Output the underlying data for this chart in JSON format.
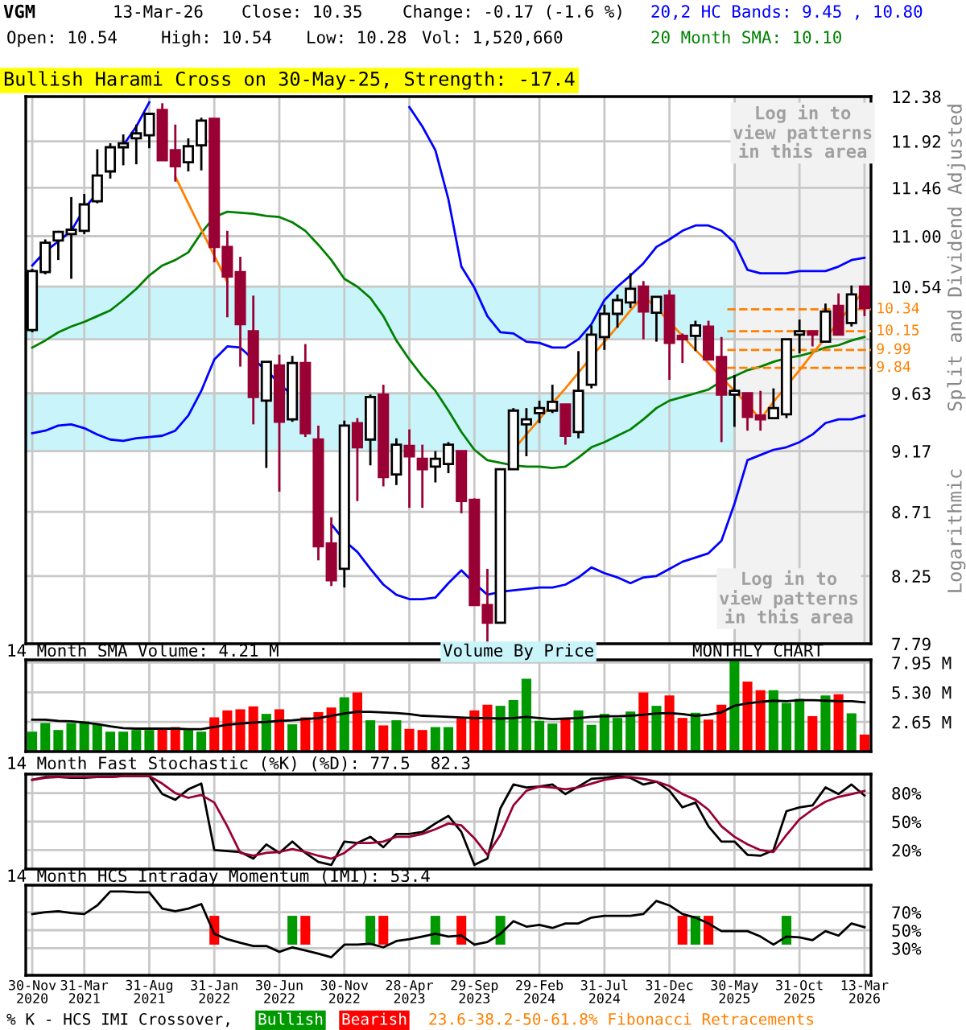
{
  "chart_data": [
    {
      "type": "candlestick",
      "title": "Bullish Harami Cross on 30-May-25, Strength: -17.4",
      "ylabel": "Split and Dividend Adjusted",
      "annotations": [
        "VGM",
        "13-Mar-26",
        "Close: 10.35",
        "Change: -0.17 (-1.6 %)",
        "Open: 10.54",
        "High: 10.54",
        "Low: 10.28",
        "Vol: 1,520,660",
        "MONTHLY CHART",
        "Log in to\nview patterns\nin this area",
        "Logarithmic",
        "23.6-38.2-50-61.8% Fibonacci Retracements",
        "Volume By Price"
      ],
      "categories": [
        "30-Nov\n2020",
        null,
        null,
        null,
        "31-Mar\n2021",
        null,
        null,
        null,
        null,
        "31-Aug\n2021",
        null,
        null,
        null,
        null,
        "31-Jan\n2022",
        null,
        null,
        null,
        null,
        "30-Jun\n2022",
        null,
        null,
        null,
        null,
        "30-Nov\n2022",
        null,
        null,
        null,
        null,
        "28-Apr\n2023",
        null,
        null,
        null,
        null,
        "29-Sep\n2023",
        null,
        null,
        null,
        null,
        "29-Feb\n2024",
        null,
        null,
        null,
        null,
        "31-Jul\n2024",
        null,
        null,
        null,
        null,
        "31-Dec\n2024",
        null,
        null,
        null,
        null,
        "30-May\n2025",
        null,
        null,
        null,
        null,
        "31-Oct\n2025",
        null,
        null,
        null,
        null,
        "13-Mar\n2026"
      ],
      "ohlc": [
        [
          10.16,
          10.7,
          10.14,
          10.68
        ],
        [
          10.67,
          10.97,
          10.65,
          10.94
        ],
        [
          10.96,
          11.05,
          10.78,
          11.04
        ],
        [
          11.02,
          11.37,
          10.61,
          11.06
        ],
        [
          11.05,
          11.4,
          11.02,
          11.3
        ],
        [
          11.33,
          11.84,
          11.31,
          11.58
        ],
        [
          11.62,
          11.9,
          11.55,
          11.86
        ],
        [
          11.86,
          11.99,
          11.68,
          11.9
        ],
        [
          11.95,
          12.09,
          11.69,
          12.0
        ],
        [
          11.98,
          12.21,
          11.85,
          12.2
        ],
        [
          12.24,
          12.31,
          11.73,
          11.73
        ],
        [
          11.83,
          12.09,
          11.52,
          11.67
        ],
        [
          11.71,
          11.95,
          11.62,
          11.87
        ],
        [
          11.88,
          12.16,
          11.63,
          12.13
        ],
        [
          12.15,
          12.15,
          10.76,
          10.9
        ],
        [
          10.9,
          11.05,
          10.27,
          10.63
        ],
        [
          10.67,
          10.81,
          9.85,
          10.21
        ],
        [
          10.15,
          10.46,
          9.38,
          9.6
        ],
        [
          9.57,
          9.89,
          9.04,
          9.89
        ],
        [
          9.86,
          9.95,
          8.86,
          9.4
        ],
        [
          9.42,
          9.94,
          9.4,
          9.88
        ],
        [
          9.88,
          10.04,
          9.28,
          9.31
        ],
        [
          9.26,
          9.37,
          8.36,
          8.46
        ],
        [
          8.48,
          8.67,
          8.18,
          8.22
        ],
        [
          8.3,
          9.41,
          8.17,
          9.37
        ],
        [
          9.39,
          9.43,
          8.79,
          9.2
        ],
        [
          9.26,
          9.62,
          9.06,
          9.6
        ],
        [
          9.62,
          9.7,
          8.9,
          8.97
        ],
        [
          8.99,
          9.27,
          8.91,
          9.22
        ],
        [
          9.21,
          9.34,
          8.74,
          9.13
        ],
        [
          9.11,
          9.22,
          8.74,
          9.03
        ],
        [
          9.05,
          9.17,
          8.93,
          9.11
        ],
        [
          9.07,
          9.24,
          9.0,
          9.22
        ],
        [
          9.17,
          9.17,
          8.7,
          8.79
        ],
        [
          8.8,
          8.81,
          8.05,
          8.05
        ],
        [
          8.05,
          8.3,
          7.79,
          7.93
        ],
        [
          7.93,
          9.03,
          7.93,
          9.03
        ],
        [
          9.03,
          9.51,
          9.03,
          9.49
        ],
        [
          9.38,
          9.51,
          9.13,
          9.42
        ],
        [
          9.47,
          9.57,
          9.39,
          9.51
        ],
        [
          9.49,
          9.7,
          9.47,
          9.56
        ],
        [
          9.54,
          9.54,
          9.22,
          9.29
        ],
        [
          9.32,
          9.98,
          9.27,
          9.65
        ],
        [
          9.7,
          10.2,
          9.67,
          10.12
        ],
        [
          10.1,
          10.38,
          9.99,
          10.3
        ],
        [
          10.3,
          10.47,
          10.18,
          10.42
        ],
        [
          10.4,
          10.66,
          10.35,
          10.52
        ],
        [
          10.54,
          10.59,
          10.08,
          10.32
        ],
        [
          10.31,
          10.45,
          10.06,
          10.45
        ],
        [
          10.46,
          10.51,
          9.74,
          10.05
        ],
        [
          10.11,
          10.13,
          9.88,
          10.08
        ],
        [
          10.11,
          10.24,
          9.98,
          10.2
        ],
        [
          10.19,
          10.24,
          9.91,
          9.91
        ],
        [
          9.93,
          10.1,
          9.24,
          9.62
        ],
        [
          9.62,
          9.78,
          9.36,
          9.65
        ],
        [
          9.63,
          9.63,
          9.33,
          9.44
        ],
        [
          9.45,
          9.65,
          9.33,
          9.42
        ],
        [
          9.43,
          9.67,
          9.43,
          9.51
        ],
        [
          9.46,
          10.08,
          9.43,
          10.08
        ],
        [
          10.12,
          10.25,
          9.96,
          10.15
        ],
        [
          10.15,
          10.15,
          10.02,
          10.12
        ],
        [
          10.06,
          10.39,
          10.06,
          10.32
        ],
        [
          10.37,
          10.48,
          10.12,
          10.12
        ],
        [
          10.22,
          10.55,
          10.19,
          10.47
        ],
        [
          10.54,
          10.54,
          10.28,
          10.35
        ]
      ],
      "series": [
        {
          "name": "20,2 HC Bands: 9.45 , 10.80",
          "type": "line",
          "color": "#0000ff",
          "values": [
            10.73,
            10.86,
            10.95,
            11.05,
            11.26,
            11.41,
            null,
            11.88,
            12.07,
            12.32,
            null,
            null,
            null,
            null,
            null,
            null,
            null,
            null,
            null,
            null,
            null,
            null,
            null,
            null,
            null,
            null,
            null,
            null,
            null,
            12.27,
            12.07,
            11.83,
            11.35,
            10.72,
            10.53,
            10.28,
            10.14,
            10.13,
            10.06,
            10.05,
            10.01,
            10.01,
            10.08,
            10.21,
            10.42,
            10.54,
            10.64,
            10.75,
            10.9,
            10.97,
            11.05,
            11.1,
            11.1,
            11.05,
            10.94,
            10.69,
            10.66,
            10.66,
            10.66,
            10.68,
            10.68,
            10.68,
            10.72,
            10.78,
            10.8
          ]
        },
        {
          "type": "line",
          "color": "#0000ff",
          "values": [
            9.31,
            9.33,
            9.37,
            9.38,
            9.35,
            9.3,
            9.26,
            9.25,
            9.27,
            9.28,
            9.29,
            9.33,
            9.45,
            9.65,
            9.91,
            10.02,
            10.01,
            9.91,
            9.82,
            9.71,
            9.61,
            null,
            null,
            8.62,
            8.5,
            8.42,
            8.3,
            8.19,
            8.12,
            8.09,
            8.09,
            8.1,
            8.2,
            8.29,
            8.2,
            8.12,
            8.14,
            8.15,
            8.16,
            8.17,
            8.17,
            8.19,
            8.24,
            8.31,
            8.27,
            8.24,
            8.2,
            8.24,
            8.25,
            8.3,
            8.35,
            8.38,
            8.41,
            8.5,
            8.77,
            9.1,
            9.14,
            9.18,
            9.2,
            9.24,
            9.3,
            9.39,
            9.42,
            9.42,
            9.45
          ]
        },
        {
          "name": "20 Month SMA: 10.10",
          "type": "line",
          "color": "#008000",
          "values": [
            10.01,
            10.07,
            10.14,
            10.19,
            10.23,
            10.28,
            10.33,
            10.42,
            10.52,
            10.64,
            10.73,
            10.78,
            10.85,
            11.03,
            11.18,
            11.23,
            11.22,
            11.21,
            11.19,
            11.18,
            11.13,
            11.05,
            10.92,
            10.78,
            10.61,
            10.54,
            10.44,
            10.28,
            10.07,
            9.91,
            9.77,
            9.65,
            9.49,
            9.32,
            9.18,
            9.1,
            9.08,
            9.06,
            9.05,
            9.05,
            9.04,
            9.05,
            9.12,
            9.2,
            9.24,
            9.29,
            9.34,
            9.42,
            9.51,
            9.57,
            9.6,
            9.63,
            9.66,
            9.73,
            9.77,
            9.82,
            9.85,
            9.89,
            9.92,
            9.94,
            9.97,
            10.01,
            10.03,
            10.07,
            10.1
          ]
        },
        {
          "type": "line",
          "color": "#ff8000",
          "values": [
            null,
            null,
            null,
            null,
            null,
            null,
            null,
            null,
            null,
            null,
            null,
            11.57,
            11.31,
            11.06,
            10.82,
            10.58,
            null,
            null,
            null,
            null,
            null,
            null,
            null,
            null,
            null,
            null,
            null,
            null,
            null,
            null,
            null,
            null,
            null,
            null,
            null,
            null,
            null,
            9.18,
            9.3,
            9.42,
            9.55,
            9.67,
            9.8,
            9.93,
            10.06,
            10.19,
            10.33,
            10.46,
            10.35,
            10.23,
            10.11,
            9.99,
            9.88,
            9.76,
            9.65,
            9.54,
            9.42,
            9.56,
            9.69,
            9.82,
            9.96,
            10.09,
            10.23,
            10.37,
            10.51
          ]
        }
      ],
      "log": true,
      "ylim": [
        7.79,
        12.38
      ],
      "yticks": [
        7.79,
        8.25,
        8.71,
        9.17,
        9.63,
        {
          "value": 10.08,
          "label": null
        },
        10.54,
        {
          "value": 11,
          "label": "11.00"
        },
        11.46,
        11.92,
        12.38
      ],
      "grid": true,
      "tick_labels": "y",
      "bands": [
        {
          "axis": "x",
          "from": "30-May\n2025",
          "to": "13-Mar\n2026",
          "label": "Log in to\nview patterns\nin this area",
          "color": "#f2f2f2"
        },
        {
          "axis": "y",
          "from": 10.08,
          "to": 10.54,
          "color": "#c8f4fa"
        },
        {
          "axis": "y",
          "from": 9.17,
          "to": 9.63,
          "color": "#c8f4fa"
        }
      ],
      "ref_lines": [
        {
          "axis": "y",
          "value": 10.34,
          "label": "10.34",
          "color": "#ff8000",
          "line_style": "dashed"
        },
        {
          "axis": "y",
          "value": 10.15,
          "label": "10.15",
          "color": "#ff8000",
          "line_style": "dashed"
        },
        {
          "axis": "y",
          "value": 9.99,
          "label": "9.99",
          "color": "#ff8000",
          "line_style": "dashed"
        },
        {
          "axis": "y",
          "value": 9.84,
          "label": "9.84",
          "color": "#ff8000",
          "line_style": "dashed"
        }
      ]
    },
    {
      "type": "bar",
      "title": "14 Month SMA Volume: 4.21 M",
      "categories": [
        "30-Nov\n2020",
        null,
        null,
        null,
        "31-Mar\n2021",
        null,
        null,
        null,
        null,
        "31-Aug\n2021",
        null,
        null,
        null,
        null,
        "31-Jan\n2022",
        null,
        null,
        null,
        null,
        "30-Jun\n2022",
        null,
        null,
        null,
        null,
        "30-Nov\n2022",
        null,
        null,
        null,
        null,
        "28-Apr\n2023",
        null,
        null,
        null,
        null,
        "29-Sep\n2023",
        null,
        null,
        null,
        null,
        "29-Feb\n2024",
        null,
        null,
        null,
        null,
        "31-Jul\n2024",
        null,
        null,
        null,
        null,
        "31-Dec\n2024",
        null,
        null,
        null,
        null,
        "30-May\n2025",
        null,
        null,
        null,
        null,
        "31-Oct\n2025",
        null,
        null,
        null,
        null,
        "13-Mar\n2026"
      ],
      "series": [
        {
          "type": "bar",
          "values": [
            1.78,
            2.55,
            1.93,
            2.55,
            2.7,
            2.44,
            1.78,
            1.78,
            1.93,
            1.93,
            2.14,
            2.19,
            1.93,
            1.78,
            3.06,
            3.68,
            3.78,
            4.04,
            3.37,
            3.78,
            2.44,
            3.06,
            3.53,
            3.94,
            4.86,
            5.28,
            2.8,
            2.34,
            2.8,
            2.03,
            1.93,
            2.19,
            2.19,
            2.96,
            3.68,
            4.19,
            4.09,
            4.61,
            6.51,
            2.75,
            2.5,
            3.01,
            3.68,
            2.39,
            3.37,
            3.01,
            3.58,
            5.28,
            4.09,
            5.02,
            3.01,
            3.47,
            2.86,
            4.19,
            8.1,
            6.25,
            5.48,
            5.48,
            4.35,
            4.71,
            3.17,
            5.02,
            5.12,
            3.42,
            1.52
          ],
          "colors": [
            "#009900",
            "#009900",
            "#009900",
            "#009900",
            "#009900",
            "#009900",
            "#009900",
            "#009900",
            "#009900",
            "#009900",
            "#ff0000",
            "#ff0000",
            "#009900",
            "#009900",
            "#ff0000",
            "#ff0000",
            "#ff0000",
            "#ff0000",
            "#009900",
            "#ff0000",
            "#009900",
            "#ff0000",
            "#ff0000",
            "#ff0000",
            "#009900",
            "#ff0000",
            "#009900",
            "#ff0000",
            "#009900",
            "#ff0000",
            "#ff0000",
            "#009900",
            "#009900",
            "#ff0000",
            "#ff0000",
            "#ff0000",
            "#009900",
            "#009900",
            "#009900",
            "#009900",
            "#009900",
            "#ff0000",
            "#009900",
            "#009900",
            "#009900",
            "#009900",
            "#009900",
            "#ff0000",
            "#009900",
            "#ff0000",
            "#ff0000",
            "#009900",
            "#ff0000",
            "#ff0000",
            "#009900",
            "#ff0000",
            "#ff0000",
            "#009900",
            "#009900",
            "#009900",
            "#ff0000",
            "#009900",
            "#ff0000",
            "#009900",
            "#ff0000"
          ]
        },
        {
          "type": "line",
          "color": "#000000",
          "values": [
            2.85,
            2.85,
            2.75,
            2.7,
            2.6,
            2.45,
            2.25,
            2.1,
            2.05,
            2.05,
            2.05,
            2.05,
            2.0,
            2.0,
            2.2,
            2.4,
            2.5,
            2.6,
            2.65,
            2.75,
            2.8,
            2.9,
            3.0,
            3.2,
            3.4,
            3.55,
            3.55,
            3.5,
            3.45,
            3.35,
            3.2,
            3.15,
            3.1,
            3.05,
            3.0,
            3.0,
            2.95,
            3.0,
            3.1,
            3.0,
            2.9,
            2.95,
            3.0,
            3.1,
            3.15,
            3.15,
            3.2,
            3.3,
            3.4,
            3.45,
            3.35,
            3.2,
            3.3,
            3.5,
            4.1,
            4.3,
            4.45,
            4.55,
            4.5,
            4.6,
            4.6,
            4.55,
            4.5,
            4.5,
            4.4
          ]
        }
      ],
      "ylim": [
        0,
        8.2
      ],
      "yticks": [
        {
          "value": 2.65,
          "label": "2.65 M"
        },
        {
          "value": 5.3,
          "label": "5.30 M"
        },
        {
          "value": 7.95,
          "label": "7.95 M"
        }
      ],
      "grid": true,
      "tick_labels": "y"
    },
    {
      "type": "line",
      "title": "14 Month Fast Stochastic (%K) (%D): 77.5  82.3",
      "categories": [
        "30-Nov\n2020",
        null,
        null,
        null,
        "31-Mar\n2021",
        null,
        null,
        null,
        null,
        "31-Aug\n2021",
        null,
        null,
        null,
        null,
        "31-Jan\n2022",
        null,
        null,
        null,
        null,
        "30-Jun\n2022",
        null,
        null,
        null,
        null,
        "30-Nov\n2022",
        null,
        null,
        null,
        null,
        "28-Apr\n2023",
        null,
        null,
        null,
        null,
        "29-Sep\n2023",
        null,
        null,
        null,
        null,
        "29-Feb\n2024",
        null,
        null,
        null,
        null,
        "31-Jul\n2024",
        null,
        null,
        null,
        null,
        "31-Dec\n2024",
        null,
        null,
        null,
        null,
        "30-May\n2025",
        null,
        null,
        null,
        null,
        "31-Oct\n2025",
        null,
        null,
        null,
        null,
        "13-Mar\n2026"
      ],
      "series": [
        {
          "color": "#000000",
          "values": [
            94,
            97,
            97,
            96,
            96,
            97,
            97,
            98,
            98,
            98,
            79,
            73,
            84,
            90,
            20,
            19,
            18,
            11,
            26,
            17,
            29,
            17,
            7.5,
            4.4,
            29,
            27.5,
            34,
            23,
            37,
            37,
            39,
            48,
            56,
            39,
            4.4,
            11,
            64,
            89,
            86,
            87,
            89,
            79,
            87,
            95,
            96,
            98,
            96,
            89,
            92,
            82.5,
            65,
            70,
            45,
            29,
            29,
            15,
            14,
            20,
            61,
            65,
            67,
            86,
            79,
            89,
            77.5
          ]
        },
        {
          "color": "#990033",
          "values": [
            94,
            96,
            97,
            97,
            97,
            97,
            97,
            98,
            98,
            98,
            90,
            80,
            75,
            78,
            70,
            45,
            17,
            14,
            17,
            18,
            21,
            18,
            14,
            11,
            17,
            27.5,
            27.5,
            29,
            34,
            34,
            37,
            42,
            48,
            46,
            32.5,
            15,
            36,
            67,
            82.5,
            87,
            86,
            84,
            86,
            90,
            94,
            96,
            97,
            95,
            92,
            87.5,
            79,
            73,
            62.5,
            45,
            34,
            26,
            20,
            18,
            36,
            52.5,
            62.5,
            71,
            76,
            79,
            82.3
          ]
        }
      ],
      "ylim": [
        0,
        100
      ],
      "yticks": [
        {
          "value": 20,
          "label": "20%"
        },
        {
          "value": 50,
          "label": "50%"
        },
        {
          "value": 80,
          "label": "80%"
        }
      ],
      "grid": true,
      "tick_labels": "y"
    },
    {
      "type": "line",
      "title": "14 Month HCS Intraday Momentum (IMI): 53.4",
      "legend_title": "% K - HCS IMI Crossover,",
      "legend": "bottom",
      "categories": [
        "30-Nov\n2020",
        null,
        null,
        null,
        "31-Mar\n2021",
        null,
        null,
        null,
        null,
        "31-Aug\n2021",
        null,
        null,
        null,
        null,
        "31-Jan\n2022",
        null,
        null,
        null,
        null,
        "30-Jun\n2022",
        null,
        null,
        null,
        null,
        "30-Nov\n2022",
        null,
        null,
        null,
        null,
        "28-Apr\n2023",
        null,
        null,
        null,
        null,
        "29-Sep\n2023",
        null,
        null,
        null,
        null,
        "29-Feb\n2024",
        null,
        null,
        null,
        null,
        "31-Jul\n2024",
        null,
        null,
        null,
        null,
        "31-Dec\n2024",
        null,
        null,
        null,
        null,
        "30-May\n2025",
        null,
        null,
        null,
        null,
        "31-Oct\n2025",
        null,
        null,
        null,
        null,
        "13-Mar\n2026"
      ],
      "series": [
        {
          "color": "#000000",
          "values": [
            68,
            70,
            71,
            69,
            68,
            77.5,
            93,
            93,
            92,
            92,
            74,
            71,
            74,
            79,
            46,
            40,
            36,
            32.5,
            32.5,
            26,
            31,
            27.5,
            24,
            20,
            34,
            34,
            35,
            31,
            38,
            40,
            43,
            46,
            43,
            44,
            34,
            37,
            46,
            60,
            54,
            56,
            52.5,
            57.5,
            57.5,
            64,
            66,
            66,
            66,
            68,
            82.5,
            77.5,
            68,
            64,
            57.5,
            49,
            49,
            49,
            43,
            34,
            43,
            42,
            39,
            49,
            44,
            57.5,
            53.4
          ]
        },
        {
          "name": "Bullish",
          "type": "bar",
          "color": "#009900",
          "values": [
            null,
            null,
            null,
            null,
            null,
            null,
            null,
            null,
            null,
            null,
            null,
            null,
            null,
            null,
            null,
            null,
            null,
            null,
            null,
            null,
            32,
            null,
            null,
            null,
            null,
            null,
            32,
            null,
            null,
            null,
            null,
            32,
            null,
            null,
            null,
            null,
            32,
            null,
            null,
            null,
            null,
            null,
            null,
            null,
            null,
            null,
            null,
            null,
            null,
            null,
            null,
            32,
            null,
            null,
            null,
            null,
            null,
            null,
            32,
            null,
            null,
            null,
            null,
            null,
            null
          ],
          "base": [
            null,
            null,
            null,
            null,
            null,
            null,
            null,
            null,
            null,
            null,
            null,
            null,
            null,
            null,
            null,
            null,
            null,
            null,
            null,
            null,
            34,
            null,
            null,
            null,
            null,
            null,
            34,
            null,
            null,
            null,
            null,
            34,
            null,
            null,
            null,
            null,
            34,
            null,
            null,
            null,
            null,
            null,
            null,
            null,
            null,
            null,
            null,
            null,
            null,
            null,
            null,
            34,
            null,
            null,
            null,
            null,
            null,
            null,
            34,
            null,
            null,
            null,
            null,
            null,
            null
          ]
        },
        {
          "name": "Bearish",
          "type": "bar",
          "color": "#ff0000",
          "values": [
            null,
            null,
            null,
            null,
            null,
            null,
            null,
            null,
            null,
            null,
            null,
            null,
            null,
            null,
            32,
            null,
            null,
            null,
            null,
            null,
            null,
            32,
            null,
            null,
            null,
            null,
            null,
            32,
            null,
            null,
            null,
            null,
            null,
            32,
            null,
            null,
            null,
            null,
            null,
            null,
            null,
            null,
            null,
            null,
            null,
            null,
            null,
            null,
            null,
            null,
            32,
            null,
            32,
            null,
            null,
            null,
            null,
            null,
            null,
            null,
            null,
            null,
            null,
            null,
            null
          ],
          "base": [
            null,
            null,
            null,
            null,
            null,
            null,
            null,
            null,
            null,
            null,
            null,
            null,
            null,
            null,
            34,
            null,
            null,
            null,
            null,
            null,
            null,
            34,
            null,
            null,
            null,
            null,
            null,
            34,
            null,
            null,
            null,
            null,
            null,
            34,
            null,
            null,
            null,
            null,
            null,
            null,
            null,
            null,
            null,
            null,
            null,
            null,
            null,
            null,
            null,
            null,
            34,
            null,
            34,
            null,
            null,
            null,
            null,
            null,
            null,
            null,
            null,
            null,
            null,
            null,
            null
          ]
        }
      ],
      "ylim": [
        0,
        100
      ],
      "yticks": [
        {
          "value": 30,
          "label": "30%"
        },
        {
          "value": 50,
          "label": "50%"
        },
        {
          "value": 70,
          "label": "70%"
        }
      ],
      "grid": true
    }
  ]
}
